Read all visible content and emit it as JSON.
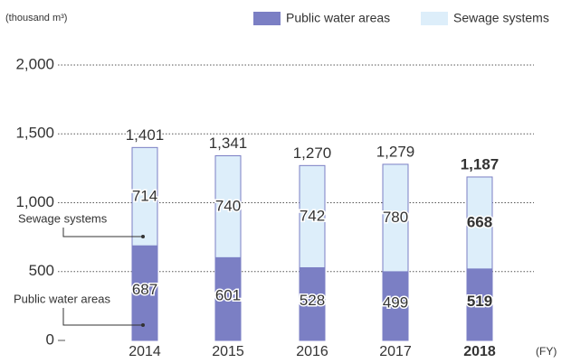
{
  "chart_data": {
    "type": "stacked_bar",
    "unit_label": "(thousand m³)",
    "x_axis_label": "(FY)",
    "categories": [
      "2014",
      "2015",
      "2016",
      "2017",
      "2018"
    ],
    "series": [
      {
        "name": "Public water areas",
        "color": "#7b7fc4",
        "values": [
          687,
          601,
          528,
          499,
          519
        ]
      },
      {
        "name": "Sewage systems",
        "color": "#ddeefa",
        "values": [
          714,
          740,
          742,
          780,
          668
        ]
      }
    ],
    "totals": [
      1401,
      1341,
      1270,
      1279,
      1187
    ],
    "total_labels": [
      "1,401",
      "1,341",
      "1,270",
      "1,279",
      "1,187"
    ],
    "annotations": [
      "Sewage systems",
      "Public water areas"
    ],
    "highlight": "2018",
    "ylim": [
      0,
      2000
    ],
    "yticks": [
      0,
      500,
      {
        "value": 1000,
        "label": "1,000"
      },
      {
        "value": 1500,
        "label": "1,500"
      },
      {
        "value": 2000,
        "label": "2,000"
      }
    ],
    "grid": true
  }
}
